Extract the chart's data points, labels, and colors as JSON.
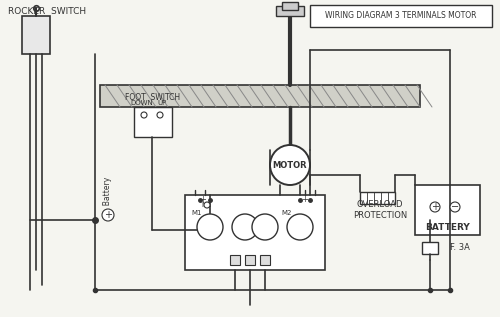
{
  "title": "WIRING DIAGRAM 3 TERMINALS MOTOR",
  "bg_color": "#f5f5f0",
  "line_color": "#333333",
  "labels": {
    "rocker_switch": "ROCKER  SWITCH",
    "foot_switch": "FOOT  SWITCH",
    "down": "DOWN",
    "up": "UP",
    "motor": "MOTOR",
    "battery_label": "+ Battery",
    "overload": "OVERLOAD\nPROTECTION",
    "battery": "BATTERY",
    "fuse": "F. 3A",
    "m1": "M1",
    "m2": "M2"
  }
}
